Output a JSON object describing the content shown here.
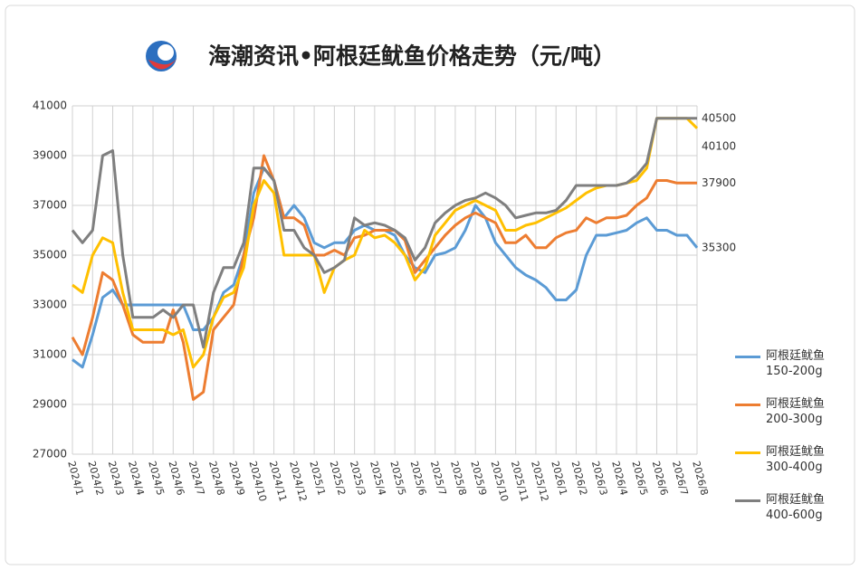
{
  "chart_data": {
    "type": "line",
    "title": "海潮资讯•阿根廷鱿鱼价格走势（元/吨）",
    "categories": [
      "2024/1",
      null,
      "2024/2",
      null,
      "2024/3",
      null,
      "2024/4",
      null,
      "2024/5",
      null,
      "2024/6",
      null,
      "2024/7",
      null,
      "2024/8",
      null,
      "2024/9",
      null,
      "2024/10",
      null,
      "2024/11",
      null,
      "2024/12",
      null,
      "2025/1",
      null,
      "2025/2",
      null,
      "2025/3",
      null,
      "2025/4",
      null,
      "2025/5",
      null,
      "2025/6",
      null,
      "2025/7",
      null,
      "2025/8",
      null,
      "2025/9",
      null,
      "2025/10",
      null,
      "2025/11",
      null,
      "2025/12",
      null,
      "2026/1",
      null,
      "2026/2",
      null,
      "2026/3",
      null,
      "2026/4",
      null,
      "2026/5",
      null,
      "2026/6",
      null,
      "2026/7",
      null,
      "2026/8"
    ],
    "series": [
      {
        "name": "阿根廷鱿鱼 150-200g",
        "color": "#5b9bd5",
        "values": [
          30800,
          30500,
          31800,
          33300,
          33600,
          33000,
          33000,
          33000,
          33000,
          33000,
          33000,
          33000,
          32000,
          32000,
          32500,
          33500,
          33800,
          35000,
          37500,
          38500,
          38000,
          36500,
          37000,
          36500,
          35500,
          35300,
          35500,
          35500,
          36000,
          36200,
          36000,
          36000,
          35800,
          35000,
          34500,
          34300,
          35000,
          35100,
          35300,
          36000,
          37000,
          36500,
          35500,
          35000,
          34500,
          34200,
          34000,
          33700,
          33200,
          33200,
          33600,
          35000,
          35800,
          35800,
          35900,
          36000,
          36300,
          36500,
          36000,
          36000,
          35800,
          35800,
          35300
        ]
      },
      {
        "name": "阿根廷鱿鱼 200-300g",
        "color": "#ed7d31",
        "values": [
          31700,
          31000,
          32500,
          34300,
          34000,
          33000,
          31800,
          31500,
          31500,
          31500,
          32800,
          31500,
          29200,
          29500,
          32000,
          32500,
          33000,
          35000,
          36500,
          39000,
          38000,
          36500,
          36500,
          36200,
          35000,
          35000,
          35200,
          35000,
          35700,
          35800,
          36000,
          36000,
          36000,
          35600,
          34300,
          34800,
          35300,
          35800,
          36200,
          36500,
          36700,
          36500,
          36300,
          35500,
          35500,
          35800,
          35300,
          35300,
          35700,
          35900,
          36000,
          36500,
          36300,
          36500,
          36500,
          36600,
          37000,
          37300,
          38000,
          38000,
          37900,
          37900,
          37900
        ]
      },
      {
        "name": "阿根廷鱿鱼 300-400g",
        "color": "#ffc000",
        "values": [
          33800,
          33500,
          35000,
          35700,
          35500,
          33500,
          32000,
          32000,
          32000,
          32000,
          31800,
          32000,
          30500,
          31000,
          32500,
          33300,
          33500,
          34500,
          37000,
          38000,
          37500,
          35000,
          35000,
          35000,
          35000,
          33500,
          34500,
          34800,
          35000,
          36000,
          35700,
          35800,
          35500,
          35000,
          34000,
          34500,
          35800,
          36300,
          36800,
          37000,
          37200,
          37000,
          36800,
          36000,
          36000,
          36200,
          36300,
          36500,
          36700,
          36900,
          37200,
          37500,
          37700,
          37800,
          37800,
          37900,
          38000,
          38500,
          40500,
          40500,
          40500,
          40500,
          40100
        ]
      },
      {
        "name": "阿根廷鱿鱼 400-600g",
        "color": "#7f7f7f",
        "values": [
          36000,
          35500,
          36000,
          39000,
          39200,
          35000,
          32500,
          32500,
          32500,
          32800,
          32500,
          33000,
          33000,
          31300,
          33500,
          34500,
          34500,
          35500,
          38500,
          38500,
          38000,
          36000,
          36000,
          35300,
          35000,
          34300,
          34500,
          34800,
          36500,
          36200,
          36300,
          36200,
          36000,
          35700,
          34800,
          35300,
          36300,
          36700,
          37000,
          37200,
          37300,
          37500,
          37300,
          37000,
          36500,
          36600,
          36700,
          36700,
          36800,
          37200,
          37800,
          37800,
          37800,
          37800,
          37800,
          37900,
          38200,
          38700,
          40500,
          40500,
          40500,
          40500,
          40500
        ]
      }
    ],
    "ylim": [
      27000,
      41000
    ],
    "yticks": [
      27000,
      29000,
      31000,
      33000,
      35000,
      37000,
      39000,
      41000
    ],
    "grid": true
  }
}
